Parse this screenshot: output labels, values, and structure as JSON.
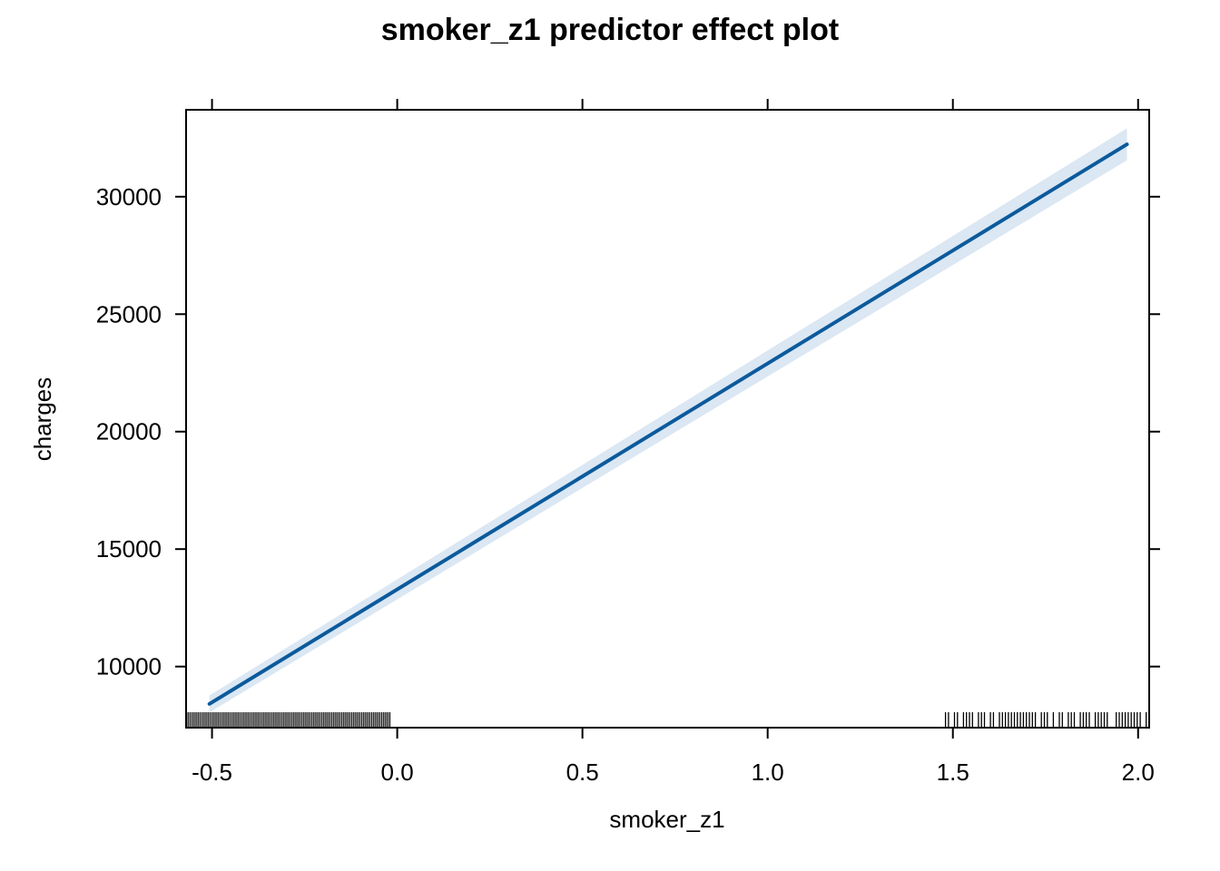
{
  "chart_data": {
    "type": "line",
    "title": "smoker_z1 predictor effect plot",
    "xlabel": "smoker_z1",
    "ylabel": "charges",
    "xlim": [
      -0.57,
      2.03
    ],
    "ylim": [
      7400,
      33700
    ],
    "x_ticks": [
      -0.5,
      0.0,
      0.5,
      1.0,
      1.5,
      2.0
    ],
    "x_tick_labels": [
      "-0.5",
      "0.0",
      "0.5",
      "1.0",
      "1.5",
      "2.0"
    ],
    "y_ticks": [
      10000,
      15000,
      20000,
      25000,
      30000
    ],
    "y_tick_labels": [
      "10000",
      "15000",
      "20000",
      "25000",
      "30000"
    ],
    "grid": false,
    "series": [
      {
        "x": [
          -0.507,
          1.97
        ],
        "y": [
          8410,
          32230
        ],
        "lower": [
          8050,
          31550
        ],
        "upper": [
          8770,
          32910
        ],
        "color": "#0b5a9c",
        "band_color": "#dbe7f3"
      }
    ],
    "rug": {
      "groups": [
        {
          "from": -0.57,
          "to": -0.02
        },
        {
          "from": 1.48,
          "to": 2.03
        }
      ],
      "color": "#000000"
    }
  }
}
